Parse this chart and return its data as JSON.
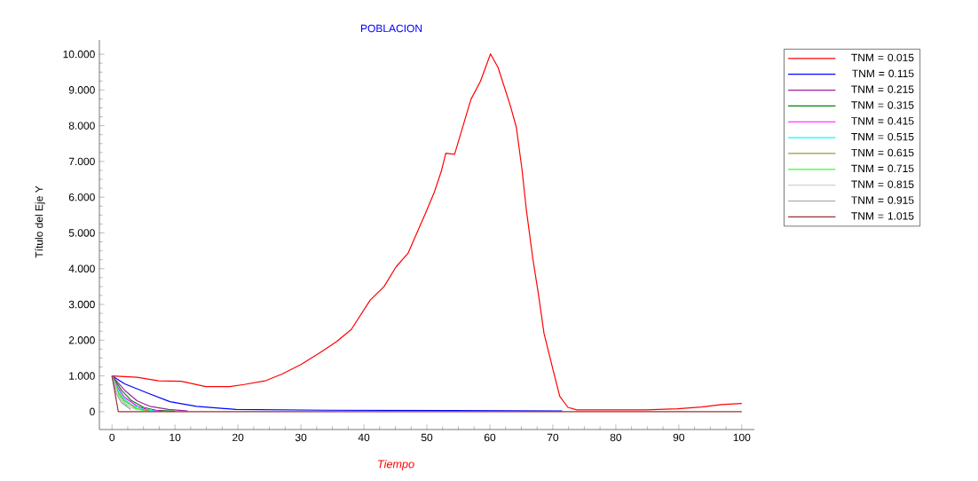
{
  "chart_data": {
    "type": "line",
    "title": "POBLACION",
    "xlabel": "Tiempo",
    "ylabel": "Título del Eje Y",
    "xlim": [
      -2,
      102
    ],
    "ylim": [
      -0.5,
      10.4
    ],
    "xticks": [
      0,
      10,
      20,
      30,
      40,
      50,
      60,
      70,
      80,
      90,
      100
    ],
    "yticks": [
      {
        "value": 0,
        "label": "0"
      },
      {
        "value": 1,
        "label": "1.000"
      },
      {
        "value": 2,
        "label": "2.000"
      },
      {
        "value": 3,
        "label": "3.000"
      },
      {
        "value": 4,
        "label": "4.000"
      },
      {
        "value": 5,
        "label": "5.000"
      },
      {
        "value": 6,
        "label": "6.000"
      },
      {
        "value": 7,
        "label": "7.000"
      },
      {
        "value": 8,
        "label": "8.000"
      },
      {
        "value": 9,
        "label": "9.000"
      },
      {
        "value": 10,
        "label": "10.000"
      }
    ],
    "grid": false,
    "legend": "top right",
    "marker": "none",
    "line_style": "solid",
    "series": [
      {
        "name": "TNM = 0.015",
        "color": "#ff0000",
        "x": [
          0,
          4,
          7.4,
          11,
          14.9,
          18.7,
          21,
          24.3,
          27,
          30,
          33,
          35.6,
          38,
          41,
          43.2,
          45.1,
          47,
          49.8,
          51.2,
          52.3,
          53,
          54.4,
          57,
          58.5,
          60.1,
          61.3,
          63.2,
          64.2,
          65.1,
          65.8,
          66.8,
          67.7,
          68.6,
          70,
          71.1,
          72.4,
          73.8,
          84.7,
          89.8,
          93.6,
          96.8,
          100
        ],
        "values": [
          1.0,
          0.96,
          0.86,
          0.85,
          0.7,
          0.7,
          0.76,
          0.86,
          1.05,
          1.32,
          1.65,
          1.95,
          2.3,
          3.12,
          3.5,
          4.05,
          4.43,
          5.56,
          6.15,
          6.73,
          7.23,
          7.2,
          8.74,
          9.24,
          10.01,
          9.63,
          8.59,
          7.96,
          6.78,
          5.64,
          4.31,
          3.3,
          2.19,
          1.19,
          0.43,
          0.12,
          0.05,
          0.05,
          0.08,
          0.13,
          0.2,
          0.23
        ]
      },
      {
        "name": "TNM = 0.115",
        "color": "#0000ff",
        "x": [
          0,
          2,
          5.5,
          9.2,
          13.4,
          19.7,
          34,
          71.5
        ],
        "values": [
          1.0,
          0.78,
          0.53,
          0.28,
          0.15,
          0.06,
          0.04,
          0.02
        ]
      },
      {
        "name": "TNM = 0.215",
        "color": "#a020a0",
        "x": [
          0,
          2,
          4,
          6,
          9,
          12
        ],
        "values": [
          1.0,
          0.6,
          0.3,
          0.15,
          0.06,
          0.02
        ]
      },
      {
        "name": "TNM = 0.315",
        "color": "#008000",
        "x": [
          0,
          1.5,
          3,
          5,
          7,
          10
        ],
        "values": [
          1.0,
          0.6,
          0.32,
          0.12,
          0.04,
          0.01
        ]
      },
      {
        "name": "TNM = 0.415",
        "color": "#ff00ff",
        "x": [
          0,
          1,
          2,
          4,
          6,
          8
        ],
        "values": [
          1.0,
          0.65,
          0.4,
          0.15,
          0.04,
          0.01
        ]
      },
      {
        "name": "TNM = 0.515",
        "color": "#00ffff",
        "x": [
          0,
          1,
          2,
          3,
          5,
          7
        ],
        "values": [
          1.0,
          0.6,
          0.35,
          0.2,
          0.06,
          0.01
        ]
      },
      {
        "name": "TNM = 0.615",
        "color": "#999933",
        "x": [
          0,
          1,
          2,
          4,
          6
        ],
        "values": [
          1.0,
          0.54,
          0.3,
          0.08,
          0.02
        ]
      },
      {
        "name": "TNM = 0.715",
        "color": "#33ff33",
        "x": [
          0,
          1,
          2,
          3,
          5
        ],
        "values": [
          1.0,
          0.49,
          0.24,
          0.12,
          0.03
        ]
      },
      {
        "name": "TNM = 0.815",
        "color": "#d0d0d0",
        "x": [
          0,
          1,
          2,
          4
        ],
        "values": [
          1.0,
          0.44,
          0.2,
          0.04
        ]
      },
      {
        "name": "TNM = 0.915",
        "color": "#a0a0a0",
        "x": [
          0,
          0.7,
          1.5,
          3
        ],
        "values": [
          1.0,
          0.5,
          0.25,
          0.06
        ]
      },
      {
        "name": "TNM = 1.015",
        "color": "#993333",
        "x": [
          0,
          1,
          100
        ],
        "values": [
          1.0,
          0,
          0
        ]
      }
    ]
  }
}
